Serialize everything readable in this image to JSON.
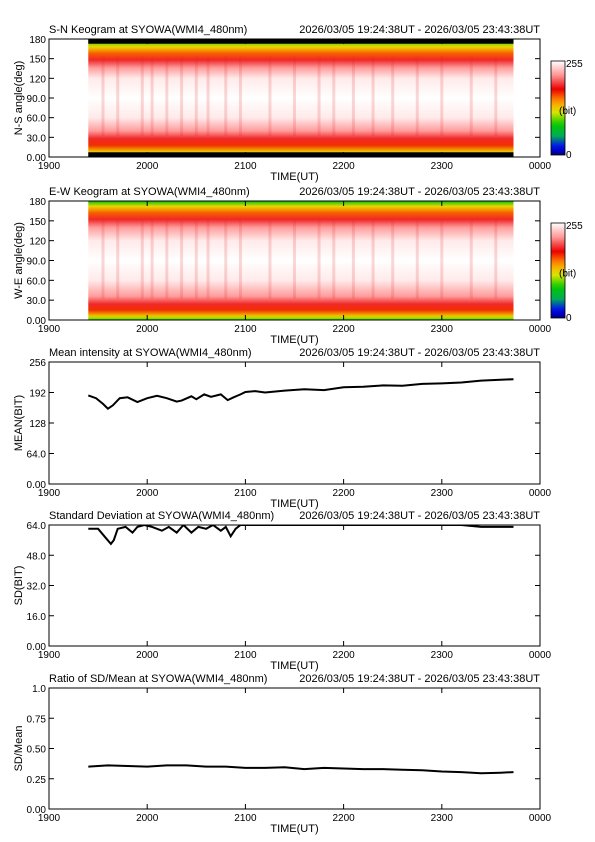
{
  "colors": {
    "axis": "#000000",
    "line": "#000000",
    "background": "#ffffff"
  },
  "colorbar": {
    "max_label": "255",
    "unit_label": "(bit)",
    "min_label": "0"
  },
  "x_axis": {
    "xlabel": "TIME(UT)",
    "ticks": [
      "1900",
      "2000",
      "2100",
      "2200",
      "2300",
      "0000"
    ],
    "range_hours": [
      19,
      24
    ]
  },
  "chart_data": [
    {
      "type": "heatmap",
      "title": "S-N Keogram at SYOWA(WMI4_480nm)",
      "time_range": "2026/03/05 19:24:38UT - 2026/03/05 23:43:38UT",
      "xlabel": "TIME(UT)",
      "ylabel": "N-S angle(deg)",
      "yticks": [
        "0.00",
        "30.0",
        "60.0",
        "90.0",
        "120",
        "150",
        "180"
      ],
      "ylim": [
        0,
        180
      ],
      "data_x_range": [
        19.4,
        23.73
      ],
      "lower_band_deg": [
        8,
        28
      ],
      "upper_band_deg": [
        148,
        168
      ]
    },
    {
      "type": "heatmap",
      "title": "E-W Keogram at SYOWA(WMI4_480nm)",
      "time_range": "2026/03/05 19:24:38UT - 2026/03/05 23:43:38UT",
      "xlabel": "TIME(UT)",
      "ylabel": "W-E angle(deg)",
      "yticks": [
        "0.00",
        "30.0",
        "60.0",
        "90.0",
        "120",
        "150",
        "180"
      ],
      "ylim": [
        0,
        180
      ],
      "data_x_range": [
        19.4,
        23.73
      ],
      "lower_band_deg": [
        6,
        24
      ],
      "upper_band_deg": [
        152,
        172
      ]
    },
    {
      "type": "line",
      "title": "Mean intensity at SYOWA(WMI4_480nm)",
      "time_range": "2026/03/05 19:24:38UT - 2026/03/05 23:43:38UT",
      "xlabel": "TIME(UT)",
      "ylabel": "MEAN(BIT)",
      "yticks": [
        "0.00",
        "64.0",
        "128",
        "192",
        "256"
      ],
      "ylim": [
        0,
        256
      ],
      "x": [
        19.4,
        19.48,
        19.55,
        19.6,
        19.65,
        19.72,
        19.8,
        19.9,
        20.0,
        20.1,
        20.2,
        20.3,
        20.35,
        20.45,
        20.5,
        20.58,
        20.65,
        20.75,
        20.82,
        20.88,
        20.95,
        21.0,
        21.1,
        21.2,
        21.4,
        21.6,
        21.8,
        22.0,
        22.2,
        22.4,
        22.6,
        22.8,
        23.0,
        23.2,
        23.4,
        23.73
      ],
      "y": [
        186,
        180,
        168,
        158,
        165,
        180,
        182,
        172,
        180,
        185,
        180,
        173,
        175,
        184,
        178,
        188,
        183,
        188,
        176,
        182,
        188,
        193,
        195,
        192,
        196,
        199,
        197,
        203,
        204,
        207,
        206,
        210,
        211,
        213,
        217,
        220
      ]
    },
    {
      "type": "line",
      "title": "Standard Deviation at SYOWA(WMI4_480nm)",
      "time_range": "2026/03/05 19:24:38UT - 2026/03/05 23:43:38UT",
      "xlabel": "TIME(UT)",
      "ylabel": "SD(BIT)",
      "yticks": [
        "0.00",
        "16.0",
        "32.0",
        "48.0",
        "64.0"
      ],
      "ylim": [
        0,
        64
      ],
      "x": [
        19.4,
        19.5,
        19.58,
        19.63,
        19.66,
        19.7,
        19.78,
        19.85,
        19.9,
        19.97,
        20.05,
        20.15,
        20.22,
        20.3,
        20.37,
        20.45,
        20.52,
        20.6,
        20.67,
        20.75,
        20.8,
        20.85,
        20.9,
        20.95,
        21.0,
        21.2,
        21.4,
        21.6,
        21.8,
        22.0,
        22.2,
        22.4,
        22.6,
        22.8,
        23.0,
        23.2,
        23.4,
        23.73
      ],
      "y": [
        62,
        62,
        57,
        54,
        56,
        62,
        63,
        60,
        63,
        64,
        63,
        61,
        63,
        60,
        64,
        60,
        63,
        62,
        64,
        61,
        63,
        58,
        62,
        64,
        64,
        64,
        64,
        64,
        64,
        64,
        64,
        64,
        64,
        64,
        64,
        64,
        63,
        63
      ]
    },
    {
      "type": "line",
      "title": "Ratio of SD/Mean at SYOWA(WMI4_480nm)",
      "time_range": "2026/03/05 19:24:38UT - 2026/03/05 23:43:38UT",
      "xlabel": "TIME(UT)",
      "ylabel": "SD/Mean",
      "yticks": [
        "0.00",
        "0.25",
        "0.50",
        "0.75",
        "1.0"
      ],
      "ylim": [
        0,
        1
      ],
      "x": [
        19.4,
        19.6,
        19.8,
        20.0,
        20.2,
        20.4,
        20.6,
        20.8,
        21.0,
        21.2,
        21.4,
        21.6,
        21.8,
        22.0,
        22.2,
        22.4,
        22.6,
        22.8,
        23.0,
        23.2,
        23.4,
        23.6,
        23.73
      ],
      "y": [
        0.35,
        0.36,
        0.355,
        0.35,
        0.36,
        0.36,
        0.35,
        0.35,
        0.34,
        0.34,
        0.345,
        0.33,
        0.34,
        0.335,
        0.33,
        0.33,
        0.325,
        0.32,
        0.31,
        0.305,
        0.295,
        0.3,
        0.305
      ]
    }
  ]
}
